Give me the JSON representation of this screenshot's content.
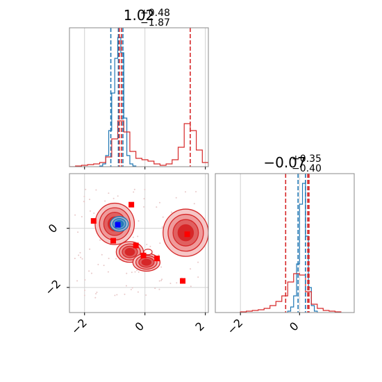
{
  "chart_data": [
    {
      "type": "step-histogram",
      "panel": "top-left",
      "title_main": "1.02",
      "title_sup": "+0.48",
      "title_sub": "−1.87",
      "xlim": [
        -2.5,
        2.1
      ],
      "xticks": [
        -2,
        0,
        2
      ],
      "colors": {
        "blue": "#1f77b4",
        "red": "#d62728"
      },
      "series": [
        {
          "name": "",
          "color": "#1f77b4",
          "bins": [
            -1.5,
            -1.4,
            -1.3,
            -1.2,
            -1.1,
            -1.0,
            -0.9,
            -0.8,
            -0.7,
            -0.6,
            -0.5,
            -0.4,
            -0.3
          ],
          "counts": [
            0.005,
            0.02,
            0.08,
            0.26,
            0.53,
            0.78,
            0.93,
            0.82,
            0.35,
            0.08,
            0.02,
            0.005
          ]
        },
        {
          "name": "",
          "color": "#d62728",
          "bins": [
            -2.5,
            -2.3,
            -2.1,
            -1.9,
            -1.7,
            -1.5,
            -1.3,
            -1.1,
            -0.9,
            -0.7,
            -0.5,
            -0.3,
            -0.1,
            0.1,
            0.3,
            0.5,
            0.7,
            0.9,
            1.1,
            1.3,
            1.5,
            1.7,
            1.9,
            2.1
          ],
          "counts": [
            0.0,
            0.005,
            0.01,
            0.015,
            0.02,
            0.03,
            0.07,
            0.2,
            0.33,
            0.25,
            0.11,
            0.06,
            0.05,
            0.04,
            0.02,
            0.01,
            0.02,
            0.05,
            0.14,
            0.31,
            0.26,
            0.12,
            0.03
          ]
        }
      ],
      "quantile_lines": [
        {
          "color": "#1f77b4",
          "x": [
            -1.13,
            -0.88,
            -0.73
          ]
        },
        {
          "color": "#d62728",
          "x": [
            -0.85,
            -0.78,
            1.5
          ]
        }
      ]
    },
    {
      "type": "contour-scatter",
      "panel": "bottom-left",
      "xlim": [
        -2.5,
        2.1
      ],
      "ylim": [
        -2.85,
        1.85
      ],
      "xticks": [
        -2,
        0,
        2
      ],
      "yticks": [
        -2,
        0
      ],
      "red_blobs": [
        {
          "cx": -1.0,
          "cy": 0.15,
          "rx": 0.65,
          "ry": 0.7
        },
        {
          "cx": 1.35,
          "cy": -0.15,
          "rx": 0.75,
          "ry": 0.8
        },
        {
          "cx": -0.5,
          "cy": -0.8,
          "rx": 0.45,
          "ry": 0.35
        },
        {
          "cx": 0.05,
          "cy": -1.15,
          "rx": 0.45,
          "ry": 0.3
        }
      ],
      "blue_blob": {
        "cx": -0.85,
        "cy": 0.15,
        "rx": 0.3,
        "ry": 0.25
      },
      "red_points": [
        {
          "x": -1.7,
          "y": 0.25
        },
        {
          "x": -0.45,
          "y": 0.8
        },
        {
          "x": -1.05,
          "y": -0.42
        },
        {
          "x": -0.3,
          "y": -0.58
        },
        {
          "x": -0.05,
          "y": -0.92
        },
        {
          "x": 0.4,
          "y": -1.02
        },
        {
          "x": 1.4,
          "y": -0.2
        },
        {
          "x": 1.25,
          "y": -1.78
        }
      ],
      "blue_point": {
        "x": -0.9,
        "y": 0.12
      }
    },
    {
      "type": "step-histogram",
      "panel": "bottom-right",
      "title_main": "−0.07",
      "title_sup": "+0.35",
      "title_sub": "−0.40",
      "xlim": [
        -2.85,
        1.85
      ],
      "xticks": [
        -2,
        0
      ],
      "series": [
        {
          "name": "",
          "color": "#1f77b4",
          "bins": [
            -0.4,
            -0.3,
            -0.2,
            -0.1,
            0.0,
            0.1,
            0.2,
            0.3,
            0.4,
            0.5,
            0.6
          ],
          "counts": [
            0.01,
            0.04,
            0.12,
            0.35,
            0.78,
            0.93,
            0.55,
            0.18,
            0.05,
            0.01
          ]
        },
        {
          "name": "",
          "color": "#d62728",
          "bins": [
            -2.0,
            -1.8,
            -1.6,
            -1.4,
            -1.2,
            -1.0,
            -0.8,
            -0.6,
            -0.4,
            -0.2,
            0.0,
            0.2,
            0.4,
            0.6,
            0.8,
            1.0,
            1.2,
            1.4
          ],
          "counts": [
            0.005,
            0.01,
            0.015,
            0.02,
            0.03,
            0.05,
            0.08,
            0.12,
            0.22,
            0.28,
            0.27,
            0.15,
            0.06,
            0.03,
            0.015,
            0.01,
            0.005
          ]
        }
      ],
      "quantile_lines": [
        {
          "color": "#1f77b4",
          "x": [
            -0.05,
            0.2,
            0.28
          ]
        },
        {
          "color": "#d62728",
          "x": [
            -0.47,
            0.28,
            0.32
          ]
        }
      ]
    }
  ]
}
